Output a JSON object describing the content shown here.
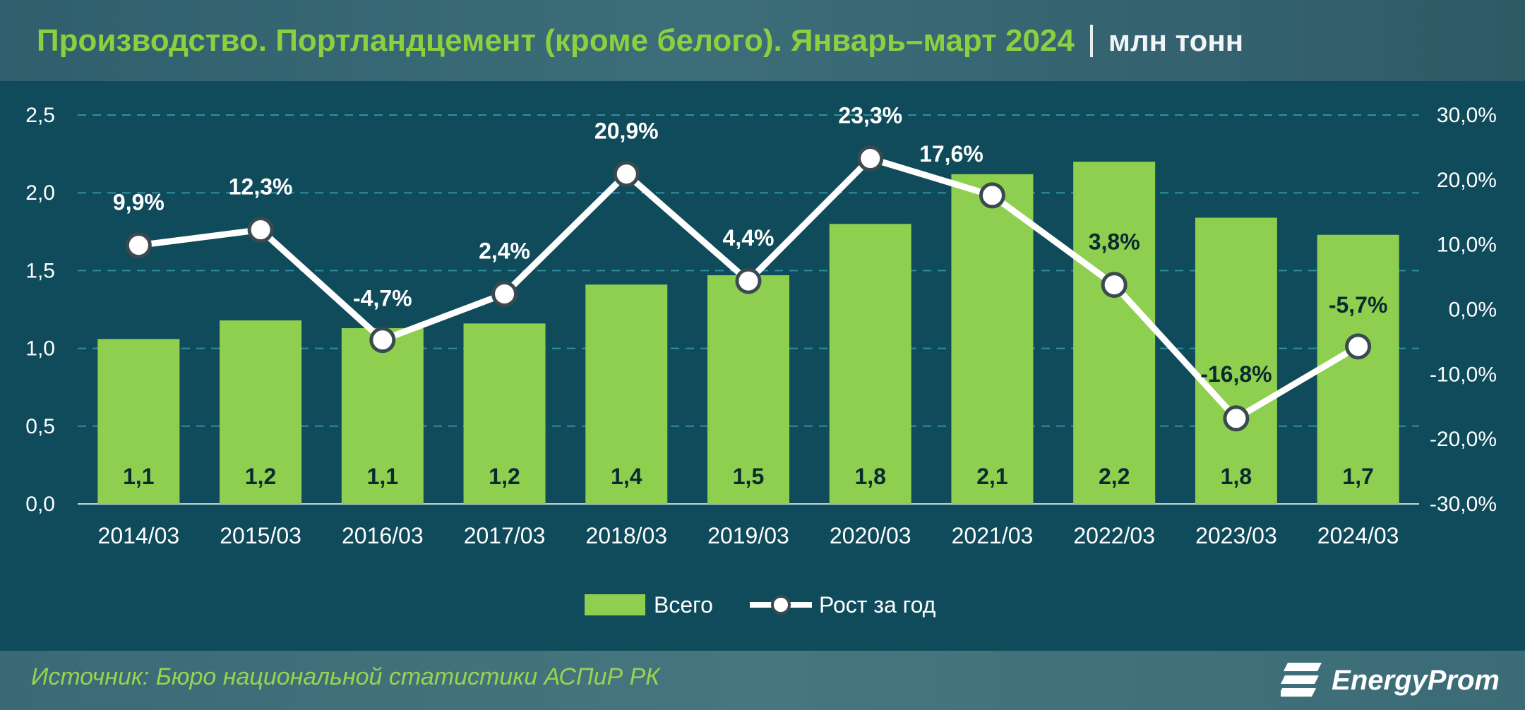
{
  "header": {
    "title": "Производство. Портландцемент (кроме белого). Январь–март 2024",
    "unit": "млн тонн"
  },
  "footer": {
    "source": "Источник: Бюро национальной статистики АСПиР РК",
    "logo_text": "EnergyProm"
  },
  "colors": {
    "bar": "#8fcf4f",
    "line": "#ffffff",
    "grid": "#2f8fa0",
    "title": "#8dcf3f"
  },
  "chart_data": {
    "type": "bar",
    "categories": [
      "2014/03",
      "2015/03",
      "2016/03",
      "2017/03",
      "2018/03",
      "2019/03",
      "2020/03",
      "2021/03",
      "2022/03",
      "2023/03",
      "2024/03"
    ],
    "series": [
      {
        "name": "Всего",
        "type": "bar",
        "axis": "left",
        "values": [
          1.06,
          1.18,
          1.13,
          1.16,
          1.41,
          1.47,
          1.8,
          2.12,
          2.2,
          1.84,
          1.73
        ],
        "labels": [
          "1,1",
          "1,2",
          "1,1",
          "1,2",
          "1,4",
          "1,5",
          "1,8",
          "2,1",
          "2,2",
          "1,8",
          "1,7"
        ]
      },
      {
        "name": "Рост за год",
        "type": "line",
        "axis": "right",
        "values": [
          9.9,
          12.3,
          -4.7,
          2.4,
          20.9,
          4.4,
          23.3,
          17.6,
          3.8,
          -16.8,
          -5.7
        ],
        "labels": [
          "9,9%",
          "12,3%",
          "-4,7%",
          "2,4%",
          "20,9%",
          "4,4%",
          "23,3%",
          "17,6%",
          "3,8%",
          "-16,8%",
          "-5,7%"
        ]
      }
    ],
    "y_left": {
      "lim": [
        0,
        2.5
      ],
      "ticks": [
        0,
        0.5,
        1.0,
        1.5,
        2.0,
        2.5
      ],
      "tick_labels": [
        "0,0",
        "0,5",
        "1,0",
        "1,5",
        "2,0",
        "2,5"
      ]
    },
    "y_right": {
      "lim": [
        -30,
        30
      ],
      "ticks": [
        -30,
        -20,
        -10,
        0,
        10,
        20,
        30
      ],
      "tick_labels": [
        "-30,0%",
        "-20,0%",
        "-10,0%",
        "0,0%",
        "10,0%",
        "20,0%",
        "30,0%"
      ]
    },
    "grid": true,
    "legend_position": "bottom-center"
  }
}
